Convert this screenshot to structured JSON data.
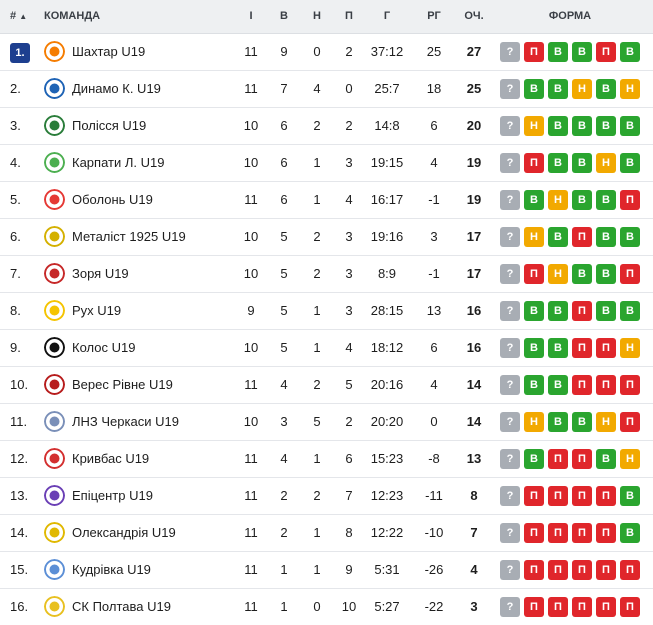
{
  "header": {
    "rank": "#",
    "sort_icon": "sort-up-icon",
    "team": "КОМАНДА",
    "played": "І",
    "won": "В",
    "drawn": "Н",
    "lost": "П",
    "goals": "Г",
    "goal_diff": "РГ",
    "points": "ОЧ.",
    "form": "ФОРМА"
  },
  "form_labels": {
    "q": "?",
    "w": "В",
    "d": "Н",
    "l": "П"
  },
  "form_colors": {
    "q": "#a8adb4",
    "w": "#2aa52f",
    "d": "#f2a900",
    "l": "#e0262b"
  },
  "rows": [
    {
      "rank": "1.",
      "team": "Шахтар U19",
      "i": "11",
      "w": "9",
      "d": "0",
      "l": "2",
      "g": "37:12",
      "gd": "25",
      "pts": "27",
      "form": [
        "q",
        "l",
        "w",
        "w",
        "l",
        "w"
      ],
      "logo_color": "#f57c00"
    },
    {
      "rank": "2.",
      "team": "Динамо К. U19",
      "i": "11",
      "w": "7",
      "d": "4",
      "l": "0",
      "g": "25:7",
      "gd": "18",
      "pts": "25",
      "form": [
        "q",
        "w",
        "w",
        "d",
        "w",
        "d"
      ],
      "logo_color": "#1e63b5"
    },
    {
      "rank": "3.",
      "team": "Полісся U19",
      "i": "10",
      "w": "6",
      "d": "2",
      "l": "2",
      "g": "14:8",
      "gd": "6",
      "pts": "20",
      "form": [
        "q",
        "d",
        "w",
        "w",
        "w",
        "w"
      ],
      "logo_color": "#2a7d3a"
    },
    {
      "rank": "4.",
      "team": "Карпати Л. U19",
      "i": "10",
      "w": "6",
      "d": "1",
      "l": "3",
      "g": "19:15",
      "gd": "4",
      "pts": "19",
      "form": [
        "q",
        "l",
        "w",
        "w",
        "d",
        "w"
      ],
      "logo_color": "#4caf50"
    },
    {
      "rank": "5.",
      "team": "Оболонь U19",
      "i": "11",
      "w": "6",
      "d": "1",
      "l": "4",
      "g": "16:17",
      "gd": "-1",
      "pts": "19",
      "form": [
        "q",
        "w",
        "d",
        "w",
        "w",
        "l"
      ],
      "logo_color": "#e53935"
    },
    {
      "rank": "6.",
      "team": "Металіст 1925 U19",
      "i": "10",
      "w": "5",
      "d": "2",
      "l": "3",
      "g": "19:16",
      "gd": "3",
      "pts": "17",
      "form": [
        "q",
        "d",
        "w",
        "l",
        "w",
        "w"
      ],
      "logo_color": "#d4b000"
    },
    {
      "rank": "7.",
      "team": "Зоря U19",
      "i": "10",
      "w": "5",
      "d": "2",
      "l": "3",
      "g": "8:9",
      "gd": "-1",
      "pts": "17",
      "form": [
        "q",
        "l",
        "d",
        "w",
        "w",
        "l"
      ],
      "logo_color": "#c62828"
    },
    {
      "rank": "8.",
      "team": "Рух U19",
      "i": "9",
      "w": "5",
      "d": "1",
      "l": "3",
      "g": "28:15",
      "gd": "13",
      "pts": "16",
      "form": [
        "q",
        "w",
        "w",
        "l",
        "w",
        "w"
      ],
      "logo_color": "#f5c400"
    },
    {
      "rank": "9.",
      "team": "Колос U19",
      "i": "10",
      "w": "5",
      "d": "1",
      "l": "4",
      "g": "18:12",
      "gd": "6",
      "pts": "16",
      "form": [
        "q",
        "w",
        "w",
        "l",
        "l",
        "d"
      ],
      "logo_color": "#111111"
    },
    {
      "rank": "10.",
      "team": "Верес Рівне U19",
      "i": "11",
      "w": "4",
      "d": "2",
      "l": "5",
      "g": "20:16",
      "gd": "4",
      "pts": "14",
      "form": [
        "q",
        "w",
        "w",
        "l",
        "l",
        "l"
      ],
      "logo_color": "#b71c1c"
    },
    {
      "rank": "11.",
      "team": "ЛНЗ Черкаси U19",
      "i": "10",
      "w": "3",
      "d": "5",
      "l": "2",
      "g": "20:20",
      "gd": "0",
      "pts": "14",
      "form": [
        "q",
        "d",
        "w",
        "w",
        "d",
        "l"
      ],
      "logo_color": "#7a8fb8"
    },
    {
      "rank": "12.",
      "team": "Кривбас U19",
      "i": "11",
      "w": "4",
      "d": "1",
      "l": "6",
      "g": "15:23",
      "gd": "-8",
      "pts": "13",
      "form": [
        "q",
        "w",
        "l",
        "l",
        "w",
        "d"
      ],
      "logo_color": "#d32f2f"
    },
    {
      "rank": "13.",
      "team": "Епіцентр U19",
      "i": "11",
      "w": "2",
      "d": "2",
      "l": "7",
      "g": "12:23",
      "gd": "-11",
      "pts": "8",
      "form": [
        "q",
        "l",
        "l",
        "l",
        "l",
        "w"
      ],
      "logo_color": "#6a3fb5"
    },
    {
      "rank": "14.",
      "team": "Олександрія U19",
      "i": "11",
      "w": "2",
      "d": "1",
      "l": "8",
      "g": "12:22",
      "gd": "-10",
      "pts": "7",
      "form": [
        "q",
        "l",
        "l",
        "l",
        "l",
        "w"
      ],
      "logo_color": "#e0b800"
    },
    {
      "rank": "15.",
      "team": "Кудрівка U19",
      "i": "11",
      "w": "1",
      "d": "1",
      "l": "9",
      "g": "5:31",
      "gd": "-26",
      "pts": "4",
      "form": [
        "q",
        "l",
        "l",
        "l",
        "l",
        "l"
      ],
      "logo_color": "#5c8fd6"
    },
    {
      "rank": "16.",
      "team": "СК Полтава U19",
      "i": "11",
      "w": "1",
      "d": "0",
      "l": "10",
      "g": "5:27",
      "gd": "-22",
      "pts": "3",
      "form": [
        "q",
        "l",
        "l",
        "l",
        "l",
        "l"
      ],
      "logo_color": "#e8c020"
    }
  ]
}
